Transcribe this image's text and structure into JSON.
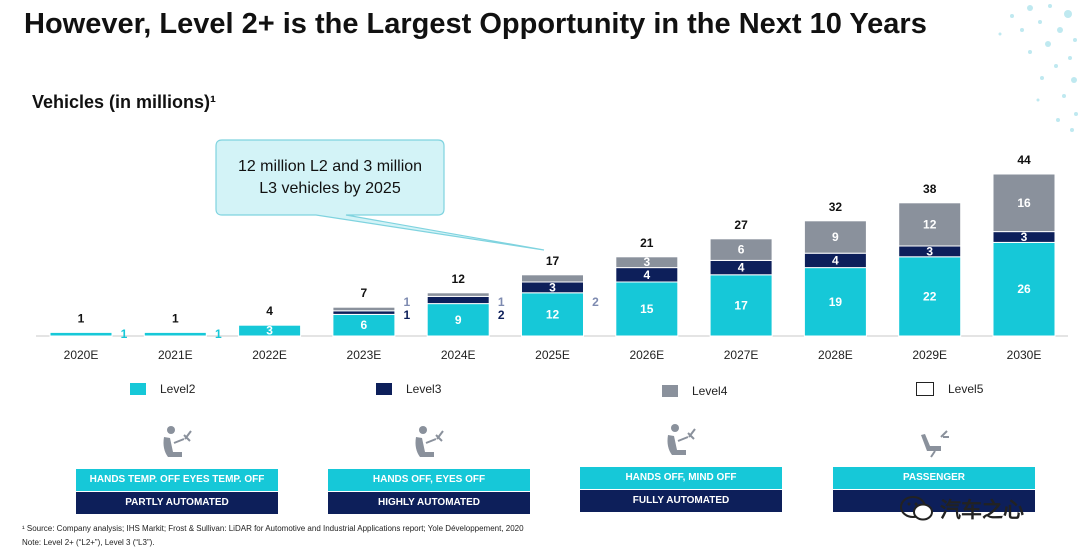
{
  "title": "However, Level 2+ is the Largest Opportunity in the Next 10 Years",
  "subtitle": "Vehicles (in millions)¹",
  "callout": {
    "line1": "12 million L2 and 3 million",
    "line2": "L3 vehicles by 2025"
  },
  "colors": {
    "level2": "#16c8d8",
    "level3": "#0d1f5a",
    "level4": "#8a919c",
    "level5": "#ffffff",
    "callout_bg": "#d3f3f7",
    "callout_border": "#7fd3df"
  },
  "chart_data": {
    "type": "bar",
    "stacked": true,
    "categories": [
      "2020E",
      "2021E",
      "2022E",
      "2023E",
      "2024E",
      "2025E",
      "2026E",
      "2027E",
      "2028E",
      "2029E",
      "2030E"
    ],
    "series": [
      {
        "name": "Level2",
        "values": [
          1,
          1,
          3,
          6,
          9,
          12,
          15,
          17,
          19,
          22,
          26
        ],
        "labels": [
          "1",
          "1",
          "3",
          "6",
          "9",
          "12",
          "15",
          "17",
          "19",
          "22",
          "26"
        ]
      },
      {
        "name": "Level3",
        "values": [
          0,
          0,
          0,
          1,
          2,
          3,
          4,
          4,
          4,
          3,
          3
        ],
        "labels": [
          "",
          "",
          "",
          "1",
          "2",
          "3",
          "4",
          "4",
          "4",
          "3",
          "3"
        ]
      },
      {
        "name": "Level4",
        "values": [
          0,
          0,
          0,
          1,
          1,
          2,
          3,
          6,
          9,
          12,
          16
        ],
        "labels": [
          "",
          "",
          "",
          "1",
          "1",
          "2",
          "3",
          "6",
          "9",
          "12",
          "16"
        ]
      },
      {
        "name": "Level5",
        "values": [
          0,
          0,
          0,
          0,
          0,
          0,
          0,
          0,
          0,
          0,
          0
        ],
        "labels": [
          "",
          "",
          "",
          "",
          "",
          "",
          "",
          "",
          "",
          "",
          ""
        ]
      }
    ],
    "totals": [
      "1",
      "1",
      "4",
      "7",
      "12",
      "17",
      "21",
      "27",
      "32",
      "38",
      "44"
    ],
    "legend_position": "bottom"
  },
  "legend": [
    {
      "label": "Level2",
      "color": "#16c8d8"
    },
    {
      "label": "Level3",
      "color": "#0d1f5a"
    },
    {
      "label": "Level4",
      "color": "#8a919c"
    },
    {
      "label": "Level5",
      "color": "#ffffff"
    }
  ],
  "automation": [
    {
      "top": "HANDS TEMP. OFF EYES TEMP. OFF",
      "bottom": "PARTLY AUTOMATED",
      "icon": "driver-seat-icon"
    },
    {
      "top": "HANDS OFF, EYES OFF",
      "bottom": "HIGHLY AUTOMATED",
      "icon": "driver-seat-icon"
    },
    {
      "top": "HANDS OFF, MIND OFF",
      "bottom": "FULLY AUTOMATED",
      "icon": "driver-seat-icon"
    },
    {
      "top": "PASSENGER",
      "bottom": "",
      "icon": "reclined-seat-icon"
    }
  ],
  "footnotes": {
    "line1": "¹ Source: Company analysis; IHS Markit; Frost & Sullivan: LiDAR for Automotive and Industrial Applications report; Yole Développement, 2020",
    "line2": "Note: Level 2+ (“L2+”), Level 3 (“L3”)."
  },
  "watermark": "汽车之心"
}
